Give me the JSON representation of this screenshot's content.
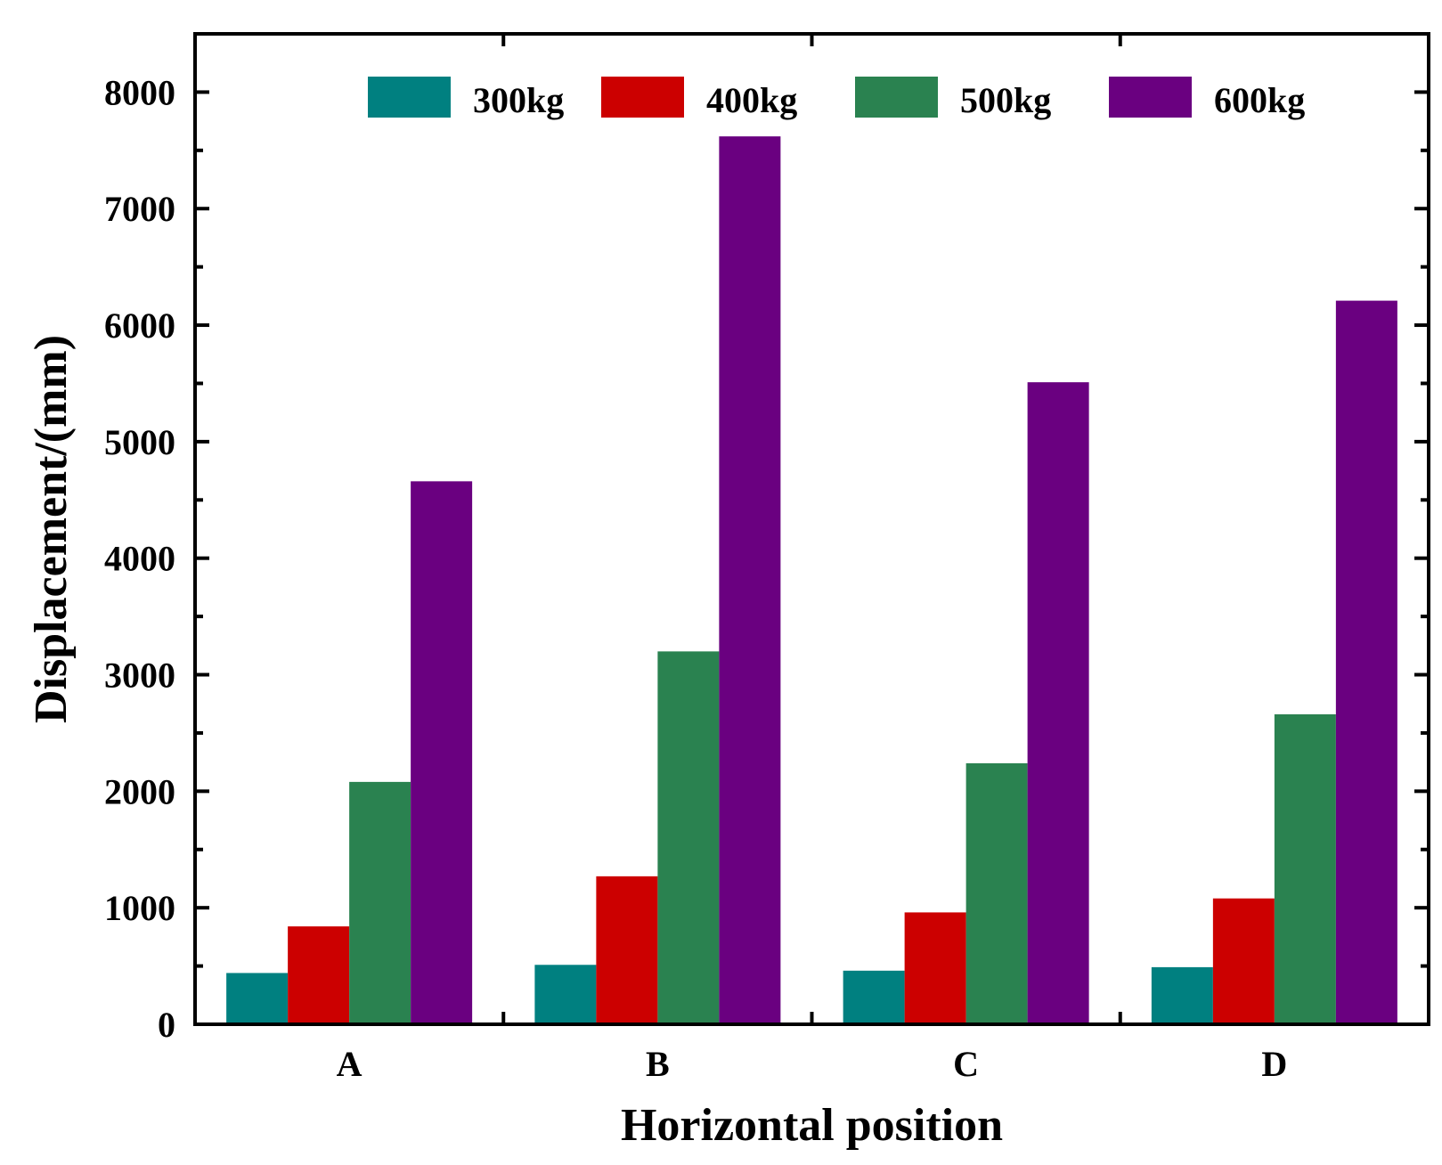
{
  "chart_data": {
    "type": "bar",
    "title": "",
    "xlabel": "Horizontal position",
    "ylabel": "Displacement/(mm)",
    "categories": [
      "A",
      "B",
      "C",
      "D"
    ],
    "ylim": [
      0,
      8500
    ],
    "yticks": [
      0,
      1000,
      2000,
      3000,
      4000,
      5000,
      6000,
      7000,
      8000
    ],
    "yticks_text": [
      "0",
      "1000",
      "2000",
      "3000",
      "4000",
      "5000",
      "6000",
      "7000",
      "8000"
    ],
    "legend_position": "top",
    "grid": false,
    "series": [
      {
        "name": "300kg",
        "color": "#008080",
        "values": [
          440,
          510,
          460,
          490
        ]
      },
      {
        "name": "400kg",
        "color": "#cc0000",
        "values": [
          840,
          1270,
          960,
          1080
        ]
      },
      {
        "name": "500kg",
        "color": "#2a8250",
        "values": [
          2080,
          3200,
          2240,
          2660
        ]
      },
      {
        "name": "600kg",
        "color": "#6a0080",
        "values": [
          4660,
          7620,
          5510,
          6210
        ]
      }
    ]
  }
}
